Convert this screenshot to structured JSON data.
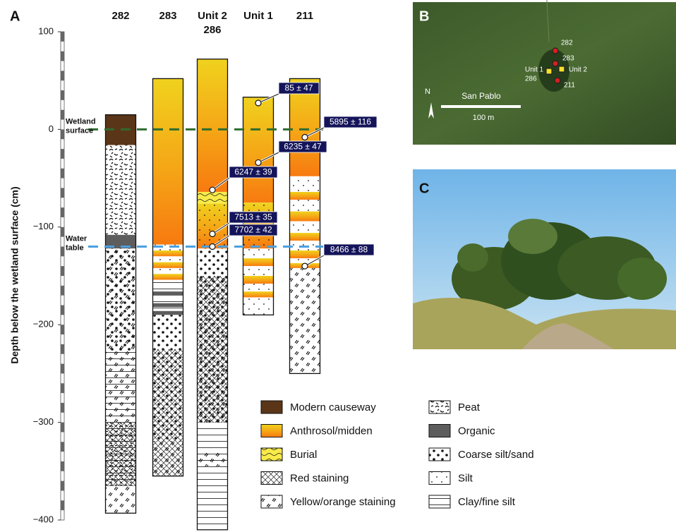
{
  "chart_data": {
    "type": "stratigraphy",
    "panel_label": "A",
    "y_label": "Depth below the wetland surface (cm)",
    "ylim": [
      100,
      -400
    ],
    "yticks": [
      100,
      0,
      {
        "value": -100,
        "label": "−100"
      },
      {
        "value": -200,
        "label": "−200"
      },
      {
        "value": -300,
        "label": "−300"
      },
      {
        "value": -400,
        "label": "−400"
      }
    ],
    "legend": [
      {
        "label": "Modern causeway"
      },
      {
        "label": "Anthrosol/midden"
      },
      {
        "label": "Burial"
      },
      {
        "label": "Red staining"
      },
      {
        "label": "Yellow/orange staining"
      },
      {
        "label": "Peat"
      },
      {
        "label": "Organic"
      },
      {
        "label": "Coarse silt/sand"
      },
      {
        "label": "Silt"
      },
      {
        "label": "Clay/fine silt"
      }
    ],
    "reference_lines": [
      {
        "label": [
          "Wetland",
          "surface"
        ],
        "value": 0,
        "color": "#2f6b2f"
      },
      {
        "label": [
          "Water",
          "table"
        ],
        "value": -120,
        "color": "#4aa0e0"
      }
    ],
    "columns": [
      {
        "label": [
          "282"
        ],
        "layers": [
          {
            "top": 15,
            "bottom": -16,
            "patterns": [
              0
            ]
          },
          {
            "top": -16,
            "bottom": -108,
            "patterns": [
              5
            ]
          },
          {
            "top": -108,
            "bottom": -122,
            "patterns": [
              6
            ]
          },
          {
            "top": -122,
            "bottom": -228,
            "patterns": [
              7,
              4
            ]
          },
          {
            "top": -228,
            "bottom": -300,
            "patterns": [
              9,
              4
            ]
          },
          {
            "top": -300,
            "bottom": -365,
            "patterns": [
              9,
              3,
              5
            ]
          },
          {
            "top": -365,
            "bottom": -393,
            "patterns": [
              4
            ]
          }
        ]
      },
      {
        "label": [
          "283"
        ],
        "layers": [
          {
            "top": 52,
            "bottom": -118,
            "patterns": [
              1
            ]
          },
          {
            "top": -118,
            "bottom": -124,
            "patterns": [
              8
            ]
          },
          {
            "top": -124,
            "bottom": -130,
            "patterns": [
              1
            ]
          },
          {
            "top": -130,
            "bottom": -136,
            "patterns": [
              8
            ]
          },
          {
            "top": -136,
            "bottom": -142,
            "patterns": [
              1
            ]
          },
          {
            "top": -142,
            "bottom": -148,
            "patterns": [
              8
            ]
          },
          {
            "top": -148,
            "bottom": -154,
            "patterns": [
              1
            ]
          },
          {
            "top": -154,
            "bottom": -166,
            "patterns": [
              9
            ]
          },
          {
            "top": -166,
            "bottom": -170,
            "patterns": [
              6
            ]
          },
          {
            "top": -170,
            "bottom": -178,
            "patterns": [
              9
            ]
          },
          {
            "top": -178,
            "bottom": -182,
            "patterns": [
              6
            ]
          },
          {
            "top": -182,
            "bottom": -186,
            "patterns": [
              9
            ]
          },
          {
            "top": -186,
            "bottom": -190,
            "patterns": [
              6
            ]
          },
          {
            "top": -190,
            "bottom": -225,
            "patterns": [
              7
            ]
          },
          {
            "top": -225,
            "bottom": -320,
            "patterns": [
              7,
              3
            ]
          },
          {
            "top": -320,
            "bottom": -355,
            "patterns": [
              3,
              4
            ]
          }
        ]
      },
      {
        "label": [
          "Unit 2",
          "286"
        ],
        "layers": [
          {
            "top": 72,
            "bottom": -64,
            "patterns": [
              1
            ]
          },
          {
            "top": -64,
            "bottom": -76,
            "patterns": [
              2
            ]
          },
          {
            "top": -76,
            "bottom": -122,
            "patterns": [
              1,
              8
            ]
          },
          {
            "top": -122,
            "bottom": -150,
            "patterns": [
              7
            ]
          },
          {
            "top": -150,
            "bottom": -300,
            "patterns": [
              7,
              3,
              4
            ]
          },
          {
            "top": -300,
            "bottom": -330,
            "patterns": [
              9
            ]
          },
          {
            "top": -330,
            "bottom": -345,
            "patterns": [
              9,
              4
            ]
          },
          {
            "top": -345,
            "bottom": -410,
            "patterns": [
              9
            ]
          }
        ]
      },
      {
        "label": [
          "Unit 1"
        ],
        "layers": [
          {
            "top": 33,
            "bottom": -75,
            "patterns": [
              1
            ]
          },
          {
            "top": -75,
            "bottom": -122,
            "patterns": [
              1,
              8
            ]
          },
          {
            "top": -122,
            "bottom": -132,
            "patterns": [
              8
            ]
          },
          {
            "top": -132,
            "bottom": -140,
            "patterns": [
              1
            ]
          },
          {
            "top": -140,
            "bottom": -150,
            "patterns": [
              8
            ]
          },
          {
            "top": -150,
            "bottom": -158,
            "patterns": [
              1
            ]
          },
          {
            "top": -158,
            "bottom": -166,
            "patterns": [
              8
            ]
          },
          {
            "top": -166,
            "bottom": -172,
            "patterns": [
              1
            ]
          },
          {
            "top": -172,
            "bottom": -190,
            "patterns": [
              8
            ]
          }
        ]
      },
      {
        "label": [
          "211"
        ],
        "layers": [
          {
            "top": 52,
            "bottom": -48,
            "patterns": [
              1
            ]
          },
          {
            "top": -48,
            "bottom": -64,
            "patterns": [
              8
            ]
          },
          {
            "top": -64,
            "bottom": -72,
            "patterns": [
              1
            ]
          },
          {
            "top": -72,
            "bottom": -84,
            "patterns": [
              8
            ]
          },
          {
            "top": -84,
            "bottom": -94,
            "patterns": [
              1
            ]
          },
          {
            "top": -94,
            "bottom": -106,
            "patterns": [
              8
            ]
          },
          {
            "top": -106,
            "bottom": -114,
            "patterns": [
              1
            ]
          },
          {
            "top": -114,
            "bottom": -124,
            "patterns": [
              8
            ]
          },
          {
            "top": -124,
            "bottom": -132,
            "patterns": [
              1
            ]
          },
          {
            "top": -132,
            "bottom": -137,
            "patterns": [
              8
            ]
          },
          {
            "top": -137,
            "bottom": -142,
            "patterns": [
              1
            ]
          },
          {
            "top": -142,
            "bottom": -250,
            "patterns": [
              4
            ]
          }
        ]
      }
    ],
    "dates": [
      {
        "label": "85 ± 47",
        "column": 3,
        "depth": 27
      },
      {
        "label": "5895 ± 116",
        "column": 4,
        "depth": -8
      },
      {
        "label": "6235 ± 47",
        "column": 3,
        "depth": -34
      },
      {
        "label": "6247 ± 39",
        "column": 2,
        "depth": -62
      },
      {
        "label": "7513 ± 35",
        "column": 2,
        "depth": -107
      },
      {
        "label": "7702 ± 42",
        "column": 2,
        "depth": -120
      },
      {
        "label": "8466 ± 88",
        "column": 4,
        "depth": -140
      }
    ]
  },
  "map": {
    "panel_label": "B",
    "labels": [
      "282",
      "283",
      "Unit 1",
      "286",
      "Unit 2",
      "211"
    ],
    "place": "San Pablo",
    "scale": "100 m",
    "north": "N"
  },
  "photo": {
    "panel_label": "C"
  }
}
